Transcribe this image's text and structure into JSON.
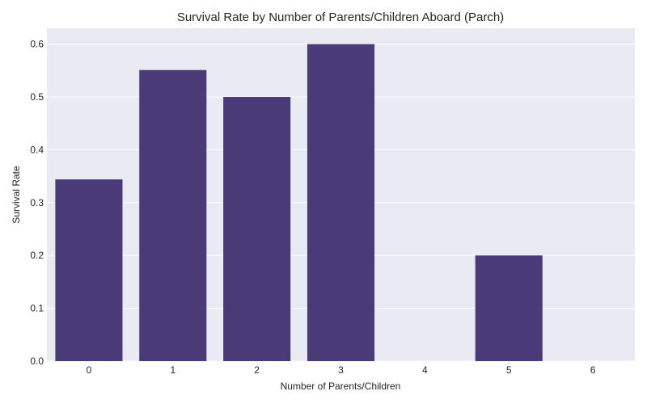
{
  "chart_data": {
    "type": "bar",
    "title": "Survival Rate by Number of Parents/Children Aboard (Parch)",
    "xlabel": "Number of Parents/Children",
    "ylabel": "Survival Rate",
    "categories": [
      "0",
      "1",
      "2",
      "3",
      "4",
      "5",
      "6"
    ],
    "values": [
      0.344,
      0.551,
      0.5,
      0.6,
      0.0,
      0.2,
      0.0
    ],
    "ylim": [
      0,
      0.63
    ],
    "yticks": [
      "0.0",
      "0.1",
      "0.2",
      "0.3",
      "0.4",
      "0.5",
      "0.6"
    ],
    "grid": true,
    "legend": "none",
    "colors": {
      "bar": "#4a3b78",
      "plot_background": "#eaeaf2",
      "gridline": "#ffffff"
    }
  }
}
